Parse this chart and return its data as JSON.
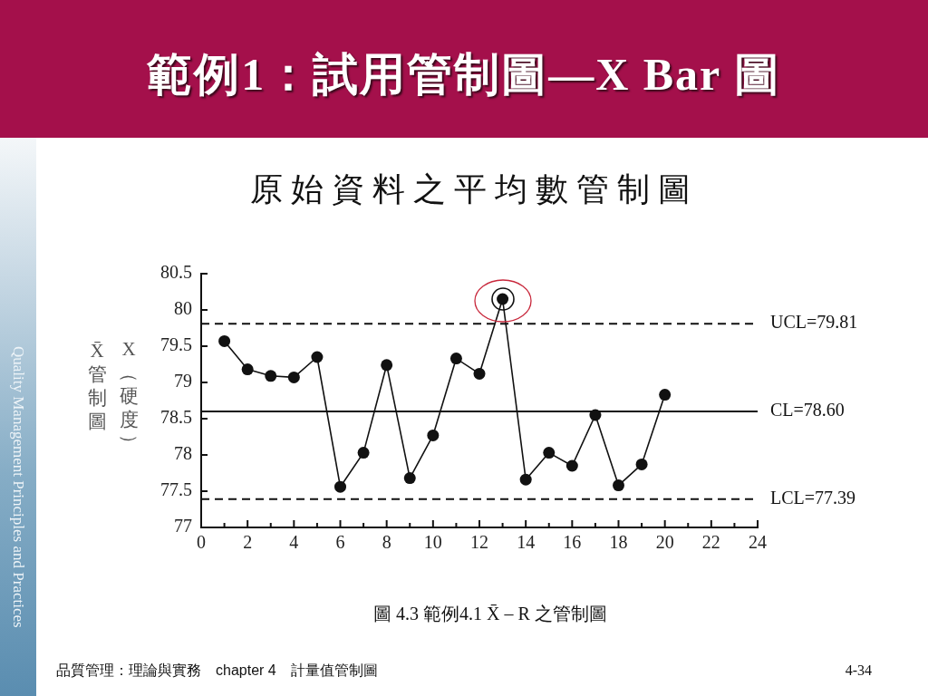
{
  "chart_data": {
    "type": "line",
    "title": "範例1：試用管制圖—X Bar 圖",
    "subtitle": "原始資料之平均數管制圖",
    "ylabel": "X（硬度）",
    "annotations": [
      "X̄管制圖",
      "圖 4.3  範例4.1 X̄ – R 之管制圖",
      "品質管理：理論與實務　chapter 4　計量值管制圖",
      "4-34",
      "Quality Management Principles and Practices"
    ],
    "x": [
      1,
      2,
      3,
      4,
      5,
      6,
      7,
      8,
      9,
      10,
      11,
      12,
      13,
      14,
      15,
      16,
      17,
      18,
      19,
      20
    ],
    "series": [
      {
        "color": "#111111",
        "values": [
          79.57,
          79.18,
          79.09,
          79.07,
          79.35,
          77.56,
          78.03,
          79.24,
          77.68,
          78.27,
          79.33,
          79.12,
          80.15,
          77.66,
          78.03,
          77.85,
          78.55,
          77.58,
          77.87,
          78.83
        ]
      }
    ],
    "xlim": [
      0,
      24
    ],
    "xticks": [
      0,
      {
        "value": 1,
        "label": null
      },
      2,
      {
        "value": 3,
        "label": null
      },
      4,
      {
        "value": 5,
        "label": null
      },
      6,
      {
        "value": 7,
        "label": null
      },
      8,
      {
        "value": 9,
        "label": null
      },
      10,
      {
        "value": 11,
        "label": null
      },
      12,
      {
        "value": 13,
        "label": null
      },
      14,
      {
        "value": 15,
        "label": null
      },
      16,
      {
        "value": 17,
        "label": null
      },
      18,
      {
        "value": 19,
        "label": null
      },
      20,
      {
        "value": 21,
        "label": null
      },
      22,
      {
        "value": 23,
        "label": null
      },
      24
    ],
    "ylim": [
      77,
      80.5
    ],
    "yticks": [
      77,
      77.5,
      78,
      78.5,
      79,
      79.5,
      80,
      80.5
    ],
    "ref_lines": [
      {
        "axis": "y",
        "value": 79.81,
        "label": "UCL=79.81",
        "line_style": "dashed"
      },
      {
        "axis": "y",
        "value": 78.6,
        "label": "CL=78.60",
        "line_style": "solid"
      },
      {
        "axis": "y",
        "value": 77.39,
        "label": "LCL=77.39",
        "line_style": "dashed"
      }
    ],
    "marker": "circle",
    "line_style": "solid"
  }
}
